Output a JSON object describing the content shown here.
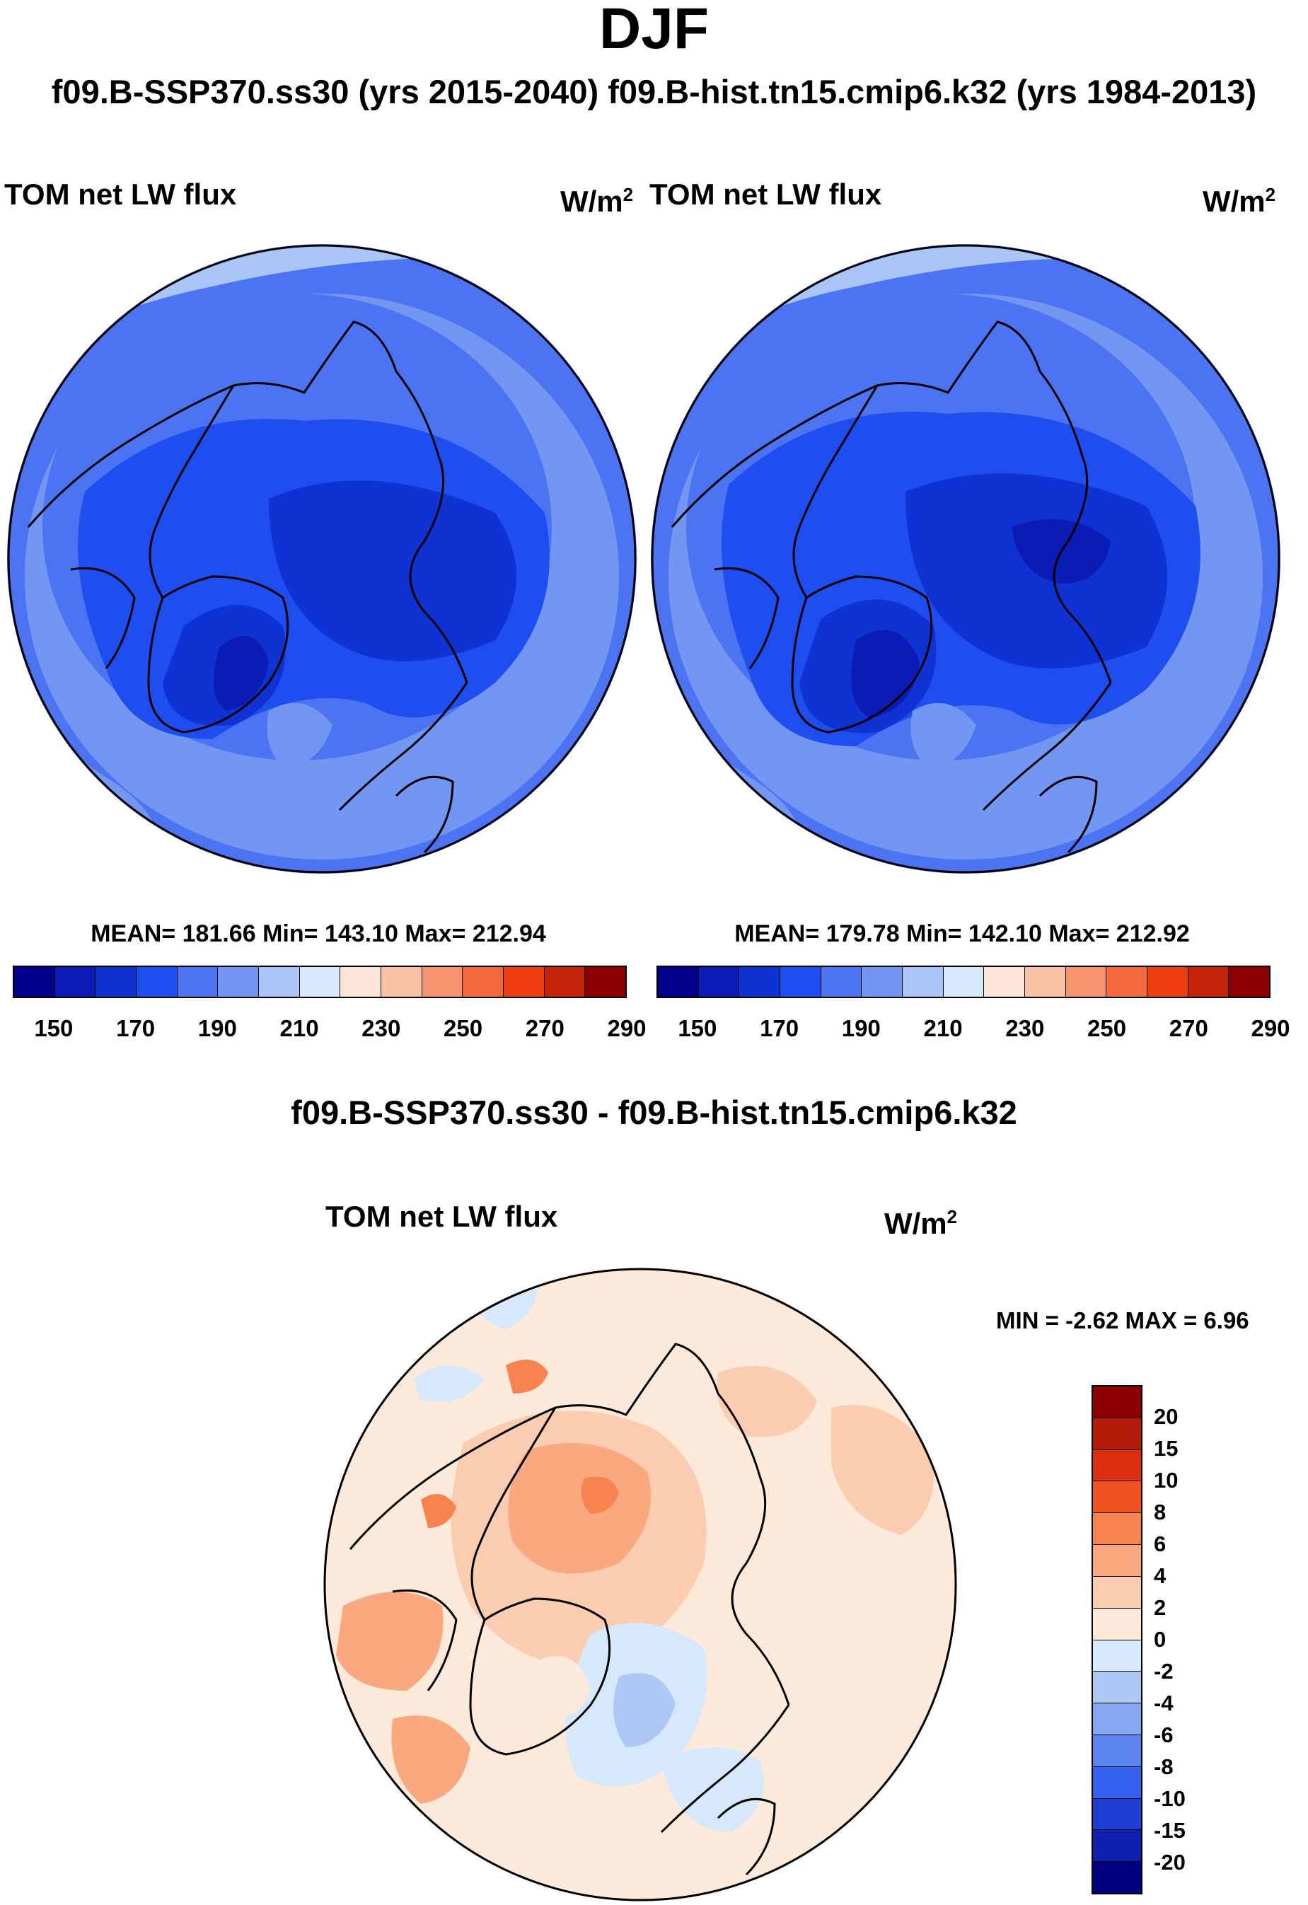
{
  "title": "DJF",
  "subtitle": "f09.B-SSP370.ss30 (yrs 2015-2040)  f09.B-hist.tn15.cmip6.k32 (yrs 1984-2013)",
  "chart_data": [
    {
      "type": "heatmap",
      "projection": "north polar stereographic",
      "title": "TOM net LW flux",
      "units": "W/m",
      "units_sup": "2",
      "case": "f09.B-SSP370.ss30 (yrs 2015-2040)",
      "stats_text": "MEAN= 181.66  Min= 143.10  Max= 212.94",
      "stats": {
        "mean": 181.66,
        "min": 143.1,
        "max": 212.94
      },
      "colorbar_levels": [
        150,
        160,
        170,
        180,
        190,
        200,
        210,
        220,
        230,
        240,
        250,
        260,
        270,
        280,
        290
      ],
      "colorbar_tick_labels": [
        "150",
        "170",
        "190",
        "210",
        "230",
        "250",
        "270",
        "290"
      ],
      "colorbar_colors": [
        "#00008b",
        "#0a1cb4",
        "#0f33d2",
        "#1e4ef0",
        "#4c74f2",
        "#7296f2",
        "#a9c4f6",
        "#d6e8fb",
        "#fbe5d6",
        "#f9c0a4",
        "#f79470",
        "#f56a3c",
        "#ec3c10",
        "#c42408",
        "#8b0000"
      ]
    },
    {
      "type": "heatmap",
      "projection": "north polar stereographic",
      "title": "TOM net LW flux",
      "units": "W/m",
      "units_sup": "2",
      "case": "f09.B-hist.tn15.cmip6.k32 (yrs 1984-2013)",
      "stats_text": "MEAN= 179.78  Min= 142.10  Max= 212.92",
      "stats": {
        "mean": 179.78,
        "min": 142.1,
        "max": 212.92
      },
      "colorbar_levels": [
        150,
        160,
        170,
        180,
        190,
        200,
        210,
        220,
        230,
        240,
        250,
        260,
        270,
        280,
        290
      ],
      "colorbar_tick_labels": [
        "150",
        "170",
        "190",
        "210",
        "230",
        "250",
        "270",
        "290"
      ],
      "colorbar_colors": [
        "#00008b",
        "#0a1cb4",
        "#0f33d2",
        "#1e4ef0",
        "#4c74f2",
        "#7296f2",
        "#a9c4f6",
        "#d6e8fb",
        "#fbe5d6",
        "#f9c0a4",
        "#f79470",
        "#f56a3c",
        "#ec3c10",
        "#c42408",
        "#8b0000"
      ]
    },
    {
      "type": "heatmap",
      "projection": "north polar stereographic",
      "suptitle": "f09.B-SSP370.ss30 - f09.B-hist.tn15.cmip6.k32",
      "title": "TOM net LW flux",
      "units": "W/m",
      "units_sup": "2",
      "minmax_text": "MIN =  -2.62 MAX =   6.96",
      "stats": {
        "min": -2.62,
        "max": 6.96
      },
      "colorbar_tick_labels": [
        "20",
        "15",
        "10",
        "8",
        "6",
        "4",
        "2",
        "0",
        "-2",
        "-4",
        "-6",
        "-8",
        "-10",
        "-15",
        "-20"
      ],
      "colorbar_colors": [
        "#8b0000",
        "#b31c08",
        "#db2e0e",
        "#f05322",
        "#f7834e",
        "#f9a880",
        "#fbccb0",
        "#fdeadb",
        "#d6e8fb",
        "#aec8f6",
        "#86a8f2",
        "#5c84f0",
        "#3462ee",
        "#1e3ed2",
        "#0f20b0",
        "#000080"
      ]
    }
  ]
}
